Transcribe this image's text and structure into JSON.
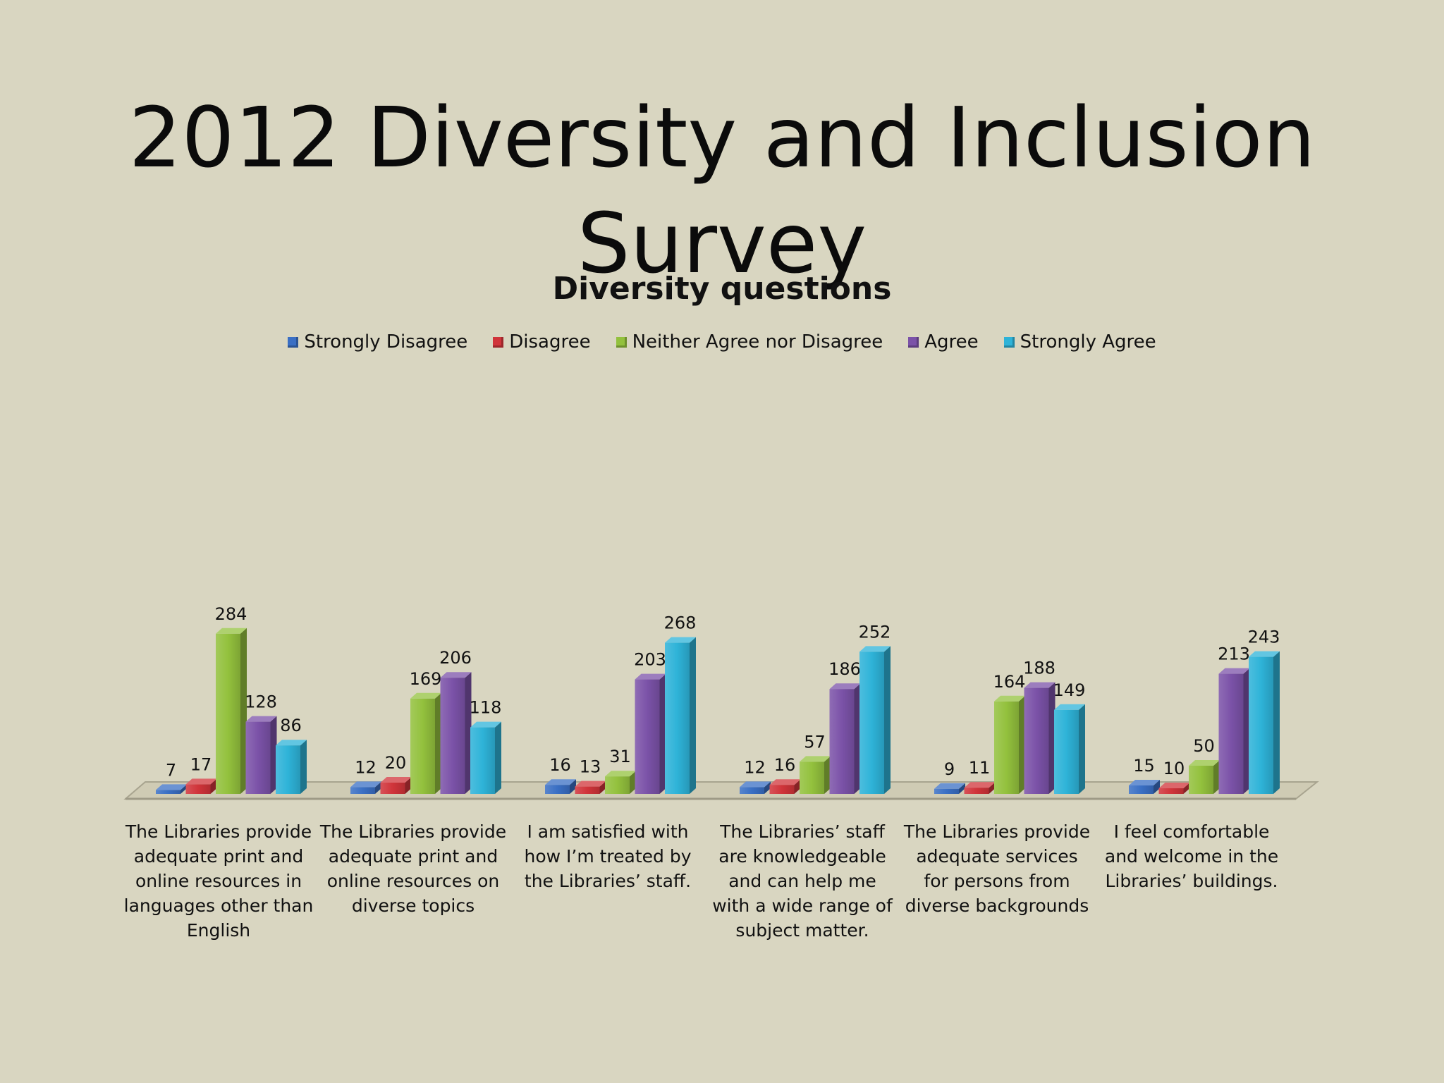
{
  "slide": {
    "title": "2012 Diversity and Inclusion Survey"
  },
  "colors": {
    "background": "#d9d6c1",
    "strongly_disagree": "#3a6fc4",
    "disagree": "#d0343a",
    "neither": "#93c13d",
    "agree": "#7b52a8",
    "strongly_agree": "#2eb3d8"
  },
  "chart_data": {
    "type": "bar",
    "style": "3d-clustered-column",
    "title": "Diversity questions",
    "legend_position": "top",
    "grid": false,
    "ylim": [
      0,
      300
    ],
    "categories": [
      "The Libraries provide adequate print and online resources in languages other than English",
      "The Libraries provide adequate print and online resources on diverse topics",
      "I am satisfied with how I’m treated  by the Libraries’ staff.",
      "The Libraries’ staff are knowledgeable and can help me with a wide range of subject matter.",
      "The Libraries provide adequate services for persons from diverse backgrounds",
      "I feel comfortable and welcome in the Libraries’ buildings."
    ],
    "series": [
      {
        "name": "Strongly Disagree",
        "color": "#3a6fc4",
        "values": [
          7,
          12,
          16,
          12,
          9,
          15
        ]
      },
      {
        "name": "Disagree",
        "color": "#d0343a",
        "values": [
          17,
          20,
          13,
          16,
          11,
          10
        ]
      },
      {
        "name": "Neither Agree nor Disagree",
        "color": "#93c13d",
        "values": [
          284,
          169,
          31,
          57,
          164,
          50
        ]
      },
      {
        "name": "Agree",
        "color": "#7b52a8",
        "values": [
          128,
          206,
          203,
          186,
          188,
          213
        ]
      },
      {
        "name": "Strongly Agree",
        "color": "#2eb3d8",
        "values": [
          86,
          118,
          268,
          252,
          149,
          243
        ]
      }
    ]
  }
}
